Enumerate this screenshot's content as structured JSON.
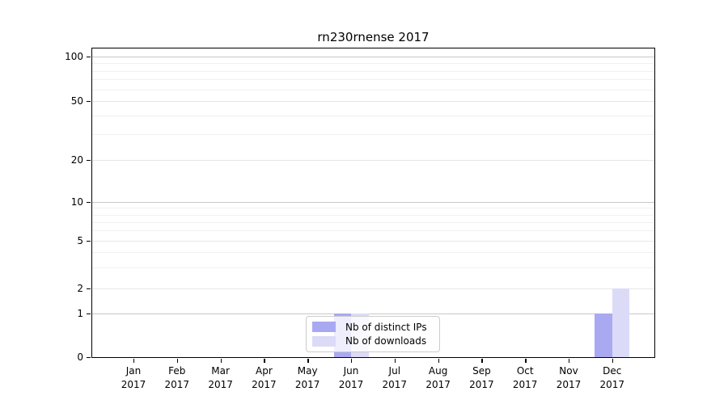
{
  "chart_data": {
    "type": "bar",
    "title": "rn230rnense 2017",
    "categories": [
      "Jan 2017",
      "Feb 2017",
      "Mar 2017",
      "Apr 2017",
      "May 2017",
      "Jun 2017",
      "Jul 2017",
      "Aug 2017",
      "Sep 2017",
      "Oct 2017",
      "Nov 2017",
      "Dec 2017"
    ],
    "month_labels": [
      "Jan",
      "Feb",
      "Mar",
      "Apr",
      "May",
      "Jun",
      "Jul",
      "Aug",
      "Sep",
      "Oct",
      "Nov",
      "Dec"
    ],
    "year_label": "2017",
    "series": [
      {
        "name": "Nb of distinct IPs",
        "color": "#a9a9f2",
        "values": [
          0,
          0,
          0,
          0,
          0,
          1,
          0,
          0,
          0,
          0,
          0,
          1
        ]
      },
      {
        "name": "Nb of downloads",
        "color": "#dbdbf8",
        "values": [
          0,
          0,
          0,
          0,
          0,
          1,
          0,
          0,
          0,
          0,
          0,
          2
        ]
      }
    ],
    "xlabel": "",
    "ylabel": "",
    "y_axis": {
      "scale": "symlog",
      "tick_values": [
        0,
        1,
        2,
        5,
        10,
        20,
        50,
        100
      ],
      "range": [
        0,
        110
      ]
    },
    "grid": true,
    "legend_position": "inside bottom-center",
    "colors": {
      "axis": "#000000",
      "major_grid": "#c8c8c8",
      "labeled_grid": "#e7e7e7",
      "minor_grid": "#f0f0f0",
      "background": "#ffffff"
    }
  }
}
